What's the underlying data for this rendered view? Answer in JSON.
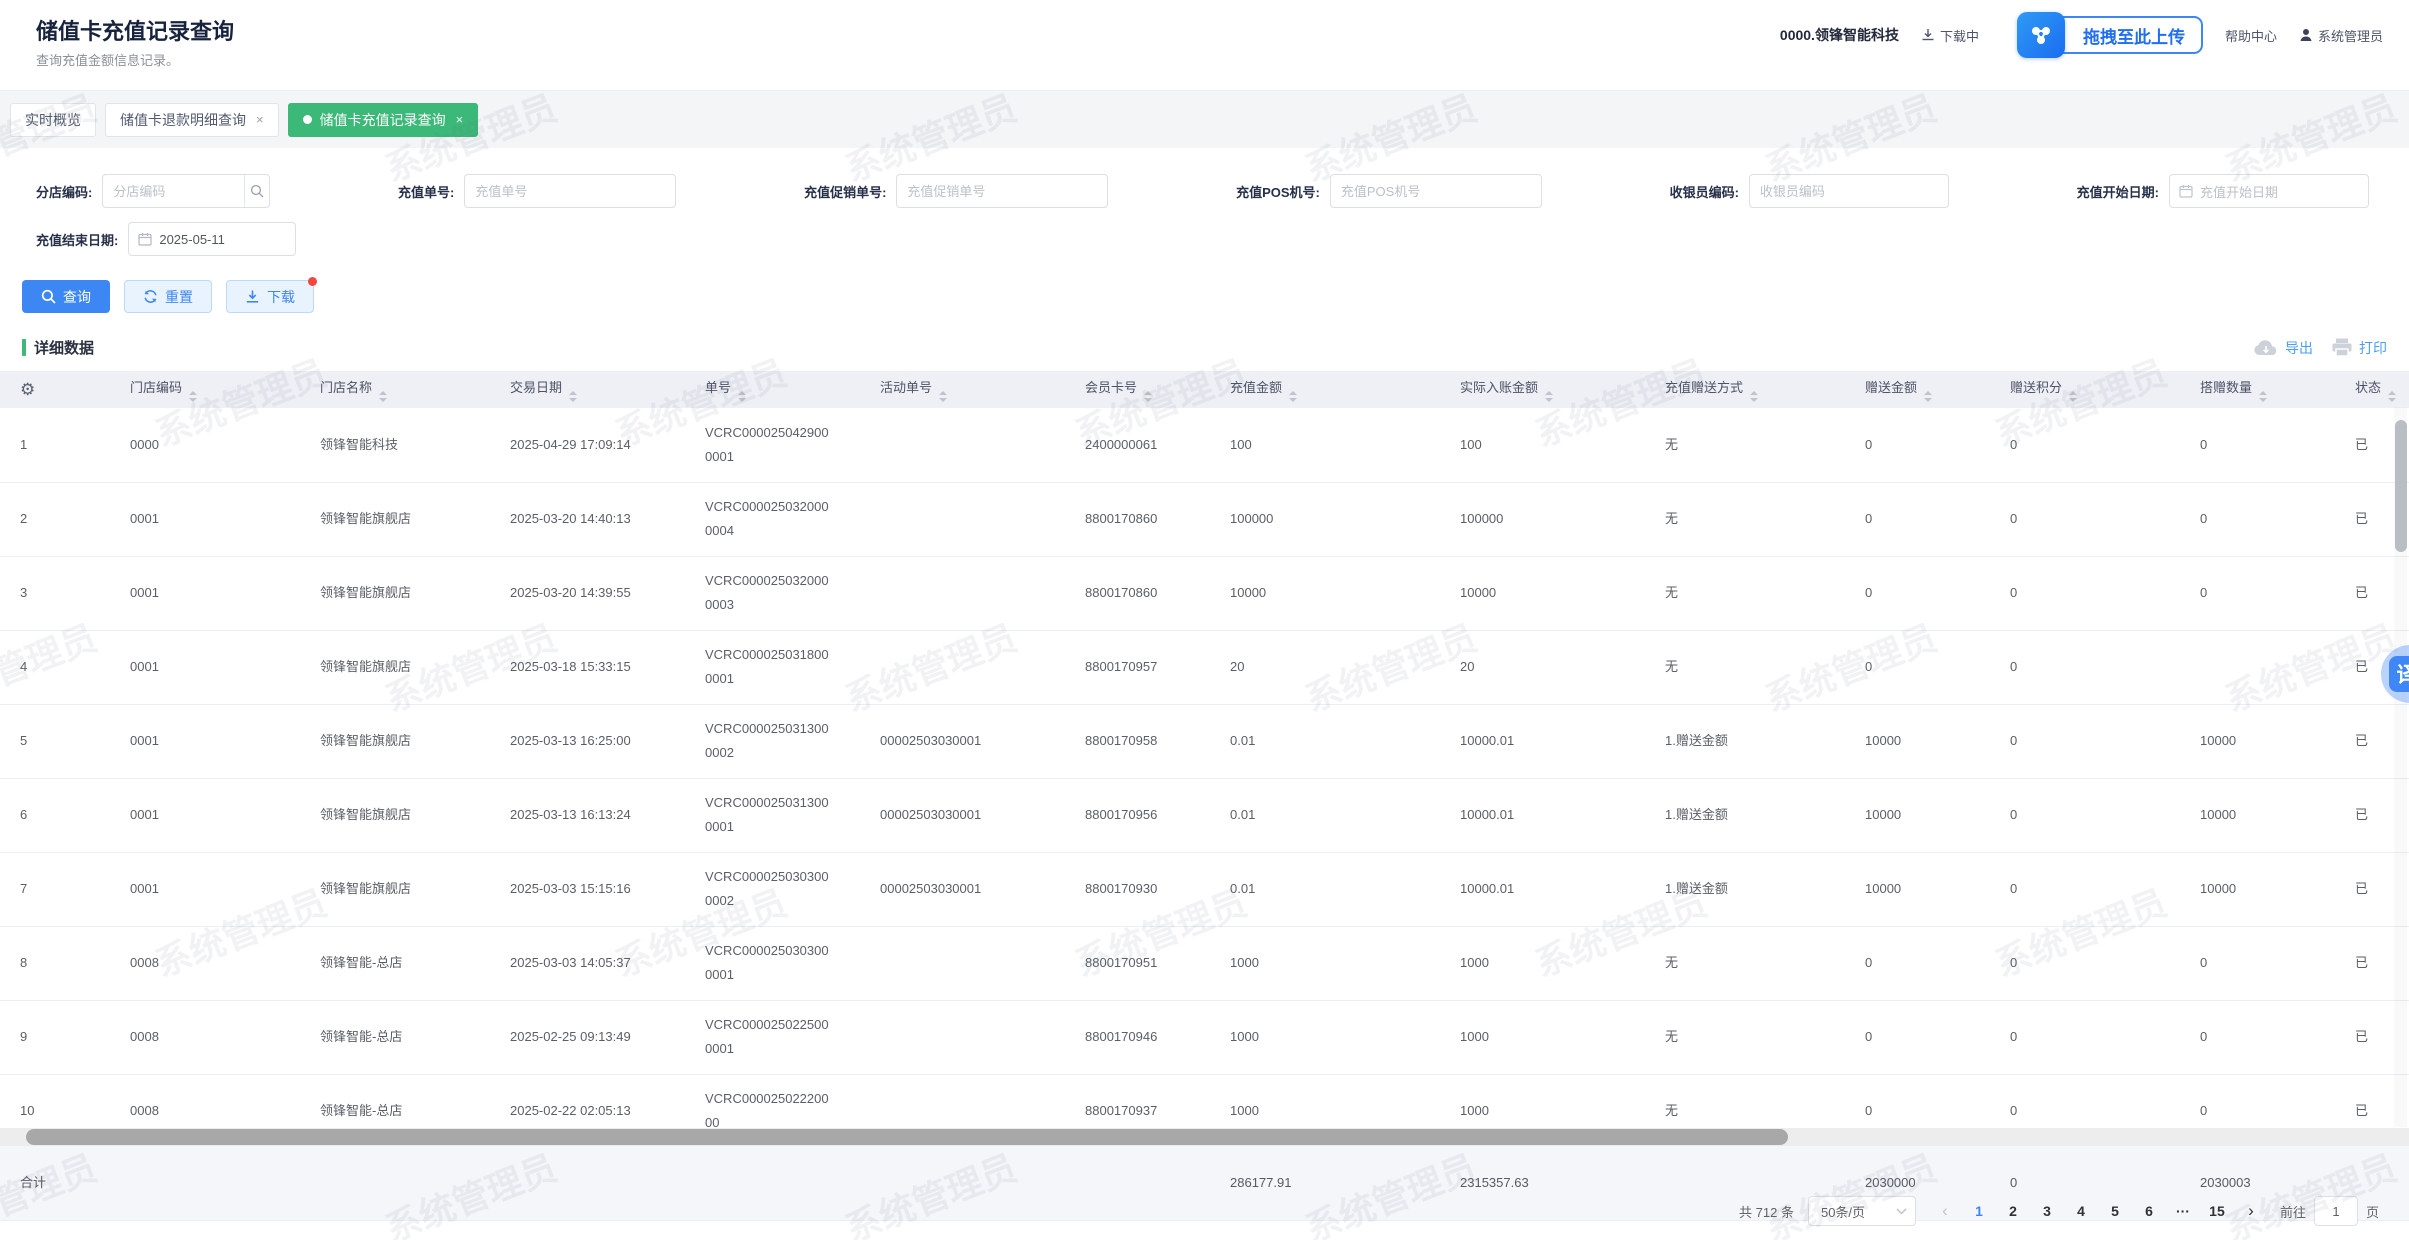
{
  "topbar": {
    "title": "储值卡充值记录查询",
    "subtitle": "查询充值金额信息记录。",
    "company": "0000.领锋智能科技",
    "download_status": "下载中",
    "upload_overlay": "拖拽至此上传",
    "help": "帮助中心",
    "user": "系统管理员"
  },
  "tabs": [
    {
      "label": "实时概览",
      "closable": false,
      "active": false
    },
    {
      "label": "储值卡退款明细查询",
      "closable": true,
      "active": false
    },
    {
      "label": "储值卡充值记录查询",
      "closable": true,
      "active": true
    }
  ],
  "filters": {
    "branch_code": {
      "label": "分店编码:",
      "placeholder": "分店编码"
    },
    "recharge_no": {
      "label": "充值单号:",
      "placeholder": "充值单号"
    },
    "promo_no": {
      "label": "充值促销单号:",
      "placeholder": "充值促销单号"
    },
    "pos_no": {
      "label": "充值POS机号:",
      "placeholder": "充值POS机号"
    },
    "cashier_code": {
      "label": "收银员编码:",
      "placeholder": "收银员编码"
    },
    "start_date": {
      "label": "充值开始日期:",
      "placeholder": "充值开始日期"
    },
    "end_date": {
      "label": "充值结束日期:",
      "value": "2025-05-11"
    }
  },
  "actions": {
    "query": "查询",
    "reset": "重置",
    "download": "下载"
  },
  "section": {
    "title": "详细数据",
    "export": "导出",
    "print": "打印"
  },
  "table": {
    "columns": [
      "门店编码",
      "门店名称",
      "交易日期",
      "单号",
      "活动单号",
      "会员卡号",
      "充值金额",
      "实际入账金额",
      "充值赠送方式",
      "赠送金额",
      "赠送积分",
      "搭赠数量",
      "状态"
    ],
    "rows": [
      [
        "1",
        "0000",
        "领锋智能科技",
        "2025-04-29 17:09:14",
        "VCRC0000250429000001",
        "",
        "2400000061",
        "100",
        "100",
        "无",
        "0",
        "0",
        "0",
        "已"
      ],
      [
        "2",
        "0001",
        "领锋智能旗舰店",
        "2025-03-20 14:40:13",
        "VCRC0000250320000004",
        "",
        "8800170860",
        "100000",
        "100000",
        "无",
        "0",
        "0",
        "0",
        "已"
      ],
      [
        "3",
        "0001",
        "领锋智能旗舰店",
        "2025-03-20 14:39:55",
        "VCRC0000250320000003",
        "",
        "8800170860",
        "10000",
        "10000",
        "无",
        "0",
        "0",
        "0",
        "已"
      ],
      [
        "4",
        "0001",
        "领锋智能旗舰店",
        "2025-03-18 15:33:15",
        "VCRC0000250318000001",
        "",
        "8800170957",
        "20",
        "20",
        "无",
        "0",
        "0",
        "",
        "已"
      ],
      [
        "5",
        "0001",
        "领锋智能旗舰店",
        "2025-03-13 16:25:00",
        "VCRC0000250313000002",
        "00002503030001",
        "8800170958",
        "0.01",
        "10000.01",
        "1.赠送金额",
        "10000",
        "0",
        "10000",
        "已"
      ],
      [
        "6",
        "0001",
        "领锋智能旗舰店",
        "2025-03-13 16:13:24",
        "VCRC0000250313000001",
        "00002503030001",
        "8800170956",
        "0.01",
        "10000.01",
        "1.赠送金额",
        "10000",
        "0",
        "10000",
        "已"
      ],
      [
        "7",
        "0001",
        "领锋智能旗舰店",
        "2025-03-03 15:15:16",
        "VCRC0000250303000002",
        "00002503030001",
        "8800170930",
        "0.01",
        "10000.01",
        "1.赠送金额",
        "10000",
        "0",
        "10000",
        "已"
      ],
      [
        "8",
        "0008",
        "领锋智能-总店",
        "2025-03-03 14:05:37",
        "VCRC0000250303000001",
        "",
        "8800170951",
        "1000",
        "1000",
        "无",
        "0",
        "0",
        "0",
        "已"
      ],
      [
        "9",
        "0008",
        "领锋智能-总店",
        "2025-02-25 09:13:49",
        "VCRC0000250225000001",
        "",
        "8800170946",
        "1000",
        "1000",
        "无",
        "0",
        "0",
        "0",
        "已"
      ],
      [
        "10",
        "0008",
        "领锋智能-总店",
        "2025-02-22 02:05:13",
        "VCRC00002502220000",
        "",
        "8800170937",
        "1000",
        "1000",
        "无",
        "0",
        "0",
        "0",
        "已"
      ]
    ],
    "totals": [
      "合计",
      "",
      "",
      "",
      "",
      "",
      "",
      "286177.91",
      "2315357.63",
      "",
      "2030000",
      "0",
      "2030003",
      ""
    ]
  },
  "pagination": {
    "total_label": "共 712 条",
    "page_size": "50条/页",
    "pages": [
      "1",
      "2",
      "3",
      "4",
      "5",
      "6",
      "···",
      "15"
    ],
    "active_page": "1",
    "prev": "‹",
    "next": "›",
    "jump_prefix": "前往",
    "jump_value": "1",
    "jump_suffix": "页"
  },
  "watermark": {
    "text": "系统管理员"
  },
  "floating": {
    "translate": "译"
  },
  "colors": {
    "accent_blue": "#3d87f5",
    "active_tab_green": "#3cb878",
    "badge_red": "#f5453d"
  }
}
